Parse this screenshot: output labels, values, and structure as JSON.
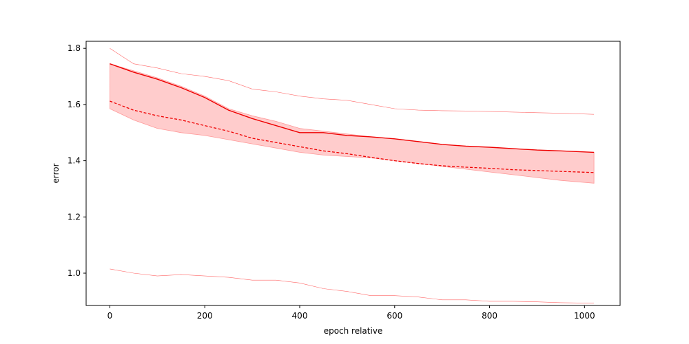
{
  "chart_data": {
    "type": "line",
    "title": "",
    "xlabel": "epoch relative",
    "ylabel": "error",
    "xlim": [
      -50,
      1075
    ],
    "ylim": [
      0.885,
      1.825
    ],
    "x_ticks": [
      0,
      200,
      400,
      600,
      800,
      1000
    ],
    "y_ticks": [
      1.0,
      1.2,
      1.4,
      1.6,
      1.8
    ],
    "x_tick_labels": [
      "0",
      "200",
      "400",
      "600",
      "800",
      "1000"
    ],
    "y_tick_labels": [
      "1.0",
      "1.2",
      "1.4",
      "1.6",
      "1.8"
    ],
    "grid": false,
    "legend": "none",
    "colors": {
      "line": "#ee0000",
      "band": "#ffcccc",
      "band_edge": "#ff9999",
      "thin": "#ff6666"
    },
    "x": [
      0,
      50,
      100,
      150,
      200,
      250,
      300,
      350,
      400,
      450,
      500,
      550,
      600,
      650,
      700,
      750,
      800,
      850,
      900,
      950,
      1020
    ],
    "series": [
      {
        "role": "upper-thin",
        "values": [
          1.8,
          1.745,
          1.73,
          1.71,
          1.7,
          1.685,
          1.655,
          1.645,
          1.63,
          1.62,
          1.615,
          1.6,
          1.585,
          1.58,
          1.578,
          1.577,
          1.575,
          1.573,
          1.571,
          1.569,
          1.565
        ]
      },
      {
        "role": "solid",
        "values": [
          1.745,
          1.715,
          1.69,
          1.66,
          1.625,
          1.58,
          1.55,
          1.525,
          1.5,
          1.5,
          1.49,
          1.485,
          1.478,
          1.468,
          1.458,
          1.452,
          1.448,
          1.443,
          1.438,
          1.435,
          1.43
        ]
      },
      {
        "role": "dashed",
        "values": [
          1.612,
          1.58,
          1.56,
          1.545,
          1.525,
          1.505,
          1.48,
          1.465,
          1.45,
          1.435,
          1.425,
          1.412,
          1.4,
          1.39,
          1.382,
          1.377,
          1.373,
          1.368,
          1.365,
          1.362,
          1.358
        ]
      },
      {
        "role": "lower-thin",
        "values": [
          1.015,
          1.0,
          0.99,
          0.995,
          0.99,
          0.985,
          0.975,
          0.975,
          0.965,
          0.945,
          0.935,
          0.92,
          0.92,
          0.915,
          0.905,
          0.905,
          0.9,
          0.9,
          0.898,
          0.895,
          0.893
        ]
      }
    ],
    "band": {
      "upper": [
        1.745,
        1.72,
        1.695,
        1.665,
        1.63,
        1.585,
        1.56,
        1.54,
        1.515,
        1.505,
        1.495,
        1.485,
        1.478,
        1.468,
        1.458,
        1.452,
        1.448,
        1.443,
        1.438,
        1.435,
        1.43
      ],
      "lower": [
        1.585,
        1.545,
        1.515,
        1.5,
        1.49,
        1.475,
        1.46,
        1.445,
        1.43,
        1.42,
        1.415,
        1.41,
        1.4,
        1.39,
        1.38,
        1.37,
        1.36,
        1.35,
        1.34,
        1.33,
        1.32
      ]
    }
  }
}
